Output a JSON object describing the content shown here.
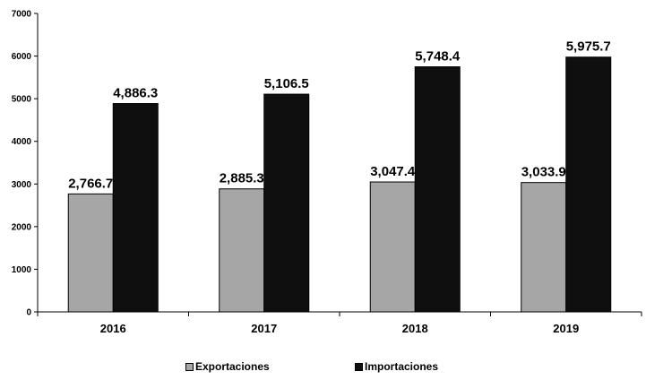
{
  "chart_data": {
    "type": "bar",
    "categories": [
      "2016",
      "2017",
      "2018",
      "2019"
    ],
    "series": [
      {
        "name": "Exportaciones",
        "values": [
          2766.7,
          2885.3,
          3047.4,
          3033.9
        ],
        "labels": [
          "2,766.7",
          "2,885.3",
          "3,047.4",
          "3,033.9"
        ],
        "color": "#a6a6a6"
      },
      {
        "name": "Importaciones",
        "values": [
          4886.3,
          5106.5,
          5748.4,
          5975.7
        ],
        "labels": [
          "4,886.3",
          "5,106.5",
          "5,748.4",
          "5,975.7"
        ],
        "color": "#0f0f0f"
      }
    ],
    "ylim": [
      0,
      7000
    ],
    "yticks": [
      0,
      1000,
      2000,
      3000,
      4000,
      5000,
      6000,
      7000
    ],
    "grid": false,
    "legend_position": "bottom"
  }
}
